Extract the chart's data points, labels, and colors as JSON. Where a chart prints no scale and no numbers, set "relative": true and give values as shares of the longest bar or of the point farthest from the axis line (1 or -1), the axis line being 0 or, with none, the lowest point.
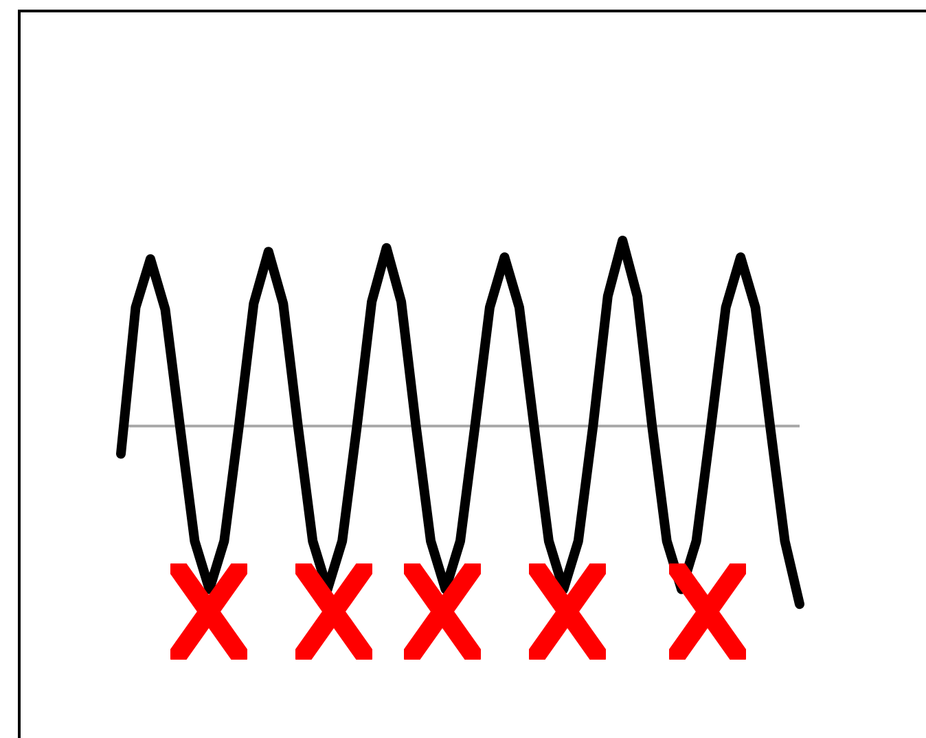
{
  "chart_data": {
    "type": "line",
    "relative": true,
    "categories": [
      null,
      null,
      null,
      null,
      null,
      null,
      null,
      null,
      null,
      null,
      null,
      null,
      null,
      null,
      null,
      null,
      null,
      null,
      null,
      null,
      null,
      null,
      null,
      null,
      null,
      null,
      null,
      null,
      null,
      null,
      null,
      null,
      null,
      null,
      null,
      null,
      null,
      null,
      null,
      null,
      null,
      null,
      null,
      null,
      null,
      null,
      null
    ],
    "series": [
      {
        "color": "#000000",
        "values": [
          -0.15,
          0.64,
          0.9,
          0.63,
          0,
          -0.62,
          -0.88,
          -0.62,
          0,
          0.66,
          0.94,
          0.66,
          0,
          -0.62,
          -0.88,
          -0.62,
          0,
          0.67,
          0.96,
          0.67,
          0,
          -0.62,
          -0.88,
          -0.62,
          0,
          0.64,
          0.91,
          0.64,
          0,
          -0.62,
          -0.88,
          -0.62,
          0,
          0.7,
          1,
          0.7,
          0,
          -0.62,
          -0.88,
          -0.62,
          0,
          0.64,
          0.91,
          0.64,
          0,
          -0.62,
          -0.96
        ]
      }
    ]
  }
}
